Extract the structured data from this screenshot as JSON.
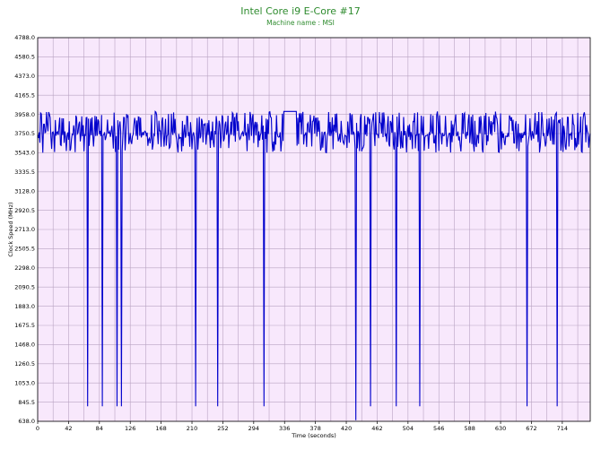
{
  "chart_data": {
    "type": "line",
    "title": "Intel Core i9 E-Core #17",
    "subtitle": "Machine name : MSI",
    "xlabel": "Time (seconds)",
    "ylabel": "Clock Speed (MHz)",
    "xlim": [
      0,
      752
    ],
    "ylim": [
      638.0,
      4788.0
    ],
    "x_ticks": [
      0,
      42,
      84,
      126,
      168,
      210,
      252,
      294,
      336,
      378,
      420,
      462,
      504,
      546,
      588,
      630,
      672,
      714
    ],
    "y_ticks": [
      638.0,
      845.5,
      1053.0,
      1260.5,
      1468.0,
      1675.5,
      1883.0,
      2090.5,
      2298.0,
      2505.5,
      2713.0,
      2920.5,
      3128.0,
      3335.5,
      3543.0,
      3750.5,
      3958.0,
      4165.5,
      4373.0,
      4580.5,
      4788.0
    ],
    "y_tick_labels": [
      "638.0",
      "845.5",
      "1053.0",
      "1260.5",
      "1468.0",
      "1675.5",
      "1883.0",
      "2090.5",
      "2298.0",
      "2505.5",
      "2713.0",
      "2920.5",
      "3128.0",
      "3335.5",
      "3543.0",
      "3750.5",
      "3958.0",
      "4165.5",
      "4373.0",
      "4580.5",
      "4788.0"
    ],
    "grid": true,
    "background": "#f8e8fc",
    "grid_color": "#b9a3c2",
    "line_color": "#0000cc",
    "title_color": "#2e8b2e",
    "series": [
      {
        "baseline": 3750,
        "typical_range": [
          3543,
          3990
        ],
        "dips": [
          {
            "x": 68,
            "y": 800
          },
          {
            "x": 88,
            "y": 800
          },
          {
            "x": 108,
            "y": 800
          },
          {
            "x": 114,
            "y": 800
          },
          {
            "x": 215,
            "y": 800
          },
          {
            "x": 245,
            "y": 800
          },
          {
            "x": 308,
            "y": 800
          },
          {
            "x": 433,
            "y": 650
          },
          {
            "x": 453,
            "y": 800
          },
          {
            "x": 488,
            "y": 800
          },
          {
            "x": 520,
            "y": 800
          },
          {
            "x": 666,
            "y": 800
          },
          {
            "x": 707,
            "y": 800
          }
        ],
        "flat_segments": [
          {
            "from": 335,
            "to": 352,
            "y": 3990
          }
        ]
      }
    ]
  }
}
